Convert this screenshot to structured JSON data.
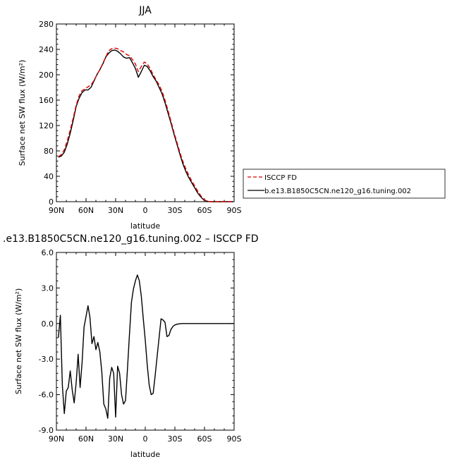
{
  "chart_data": [
    {
      "type": "line",
      "title": "JJA",
      "xlabel": "latitude",
      "ylabel": "Surface net SW flux (W/m²)",
      "xlim": [
        90,
        -90
      ],
      "ylim": [
        0,
        280
      ],
      "xticks": [
        {
          "value": 90,
          "label": "90N"
        },
        {
          "value": 60,
          "label": "60N"
        },
        {
          "value": 30,
          "label": "30N"
        },
        {
          "value": 0,
          "label": "0"
        },
        {
          "value": -30,
          "label": "30S"
        },
        {
          "value": -60,
          "label": "60S"
        },
        {
          "value": -90,
          "label": "90S"
        }
      ],
      "yticks": [
        {
          "value": 0,
          "label": "0"
        },
        {
          "value": 40,
          "label": "40"
        },
        {
          "value": 80,
          "label": "80"
        },
        {
          "value": 120,
          "label": "120"
        },
        {
          "value": 160,
          "label": "160"
        },
        {
          "value": 200,
          "label": "200"
        },
        {
          "value": 240,
          "label": "240"
        },
        {
          "value": 280,
          "label": "280"
        }
      ],
      "legend_position": "right",
      "series": [
        {
          "name": "ISCCP FD",
          "color": "#dd0000",
          "dash": "dashed",
          "x": [
            88,
            85,
            82,
            79,
            76,
            73,
            70,
            67,
            64,
            61,
            58,
            55,
            52,
            49,
            46,
            43,
            40,
            37,
            34,
            31,
            28,
            25,
            22,
            19,
            16,
            13,
            10,
            7,
            4,
            1,
            -2,
            -5,
            -8,
            -11,
            -14,
            -17,
            -20,
            -23,
            -26,
            -29,
            -32,
            -35,
            -38,
            -41,
            -44,
            -47,
            -50,
            -53,
            -56,
            -59,
            -62,
            -65,
            -68,
            -71,
            -74,
            -77,
            -80,
            -83,
            -86,
            -89
          ],
          "y": [
            71,
            74,
            82,
            96,
            113,
            132,
            152,
            167,
            175,
            178,
            181,
            184,
            191,
            200,
            208,
            218,
            228,
            238,
            241,
            242,
            241,
            238,
            236,
            232,
            230,
            224,
            217,
            205,
            213,
            220,
            217,
            210,
            200,
            192,
            184,
            174,
            160,
            144,
            127,
            110,
            94,
            78,
            64,
            52,
            42,
            33,
            25,
            17,
            10,
            4,
            1,
            0,
            0,
            0,
            0,
            0,
            0,
            0,
            0,
            0
          ]
        },
        {
          "name": "b.e13.B1850C5CN.ne120_g16.tuning.002",
          "color": "#000000",
          "dash": "solid",
          "x": [
            88,
            85,
            82,
            79,
            76,
            73,
            70,
            67,
            64,
            61,
            58,
            55,
            52,
            49,
            46,
            43,
            40,
            37,
            34,
            31,
            28,
            25,
            22,
            19,
            16,
            13,
            10,
            7,
            4,
            1,
            -2,
            -5,
            -8,
            -11,
            -14,
            -17,
            -20,
            -23,
            -26,
            -29,
            -32,
            -35,
            -38,
            -41,
            -44,
            -47,
            -50,
            -53,
            -56,
            -59,
            -62,
            -65,
            -68,
            -71,
            -74,
            -77,
            -80,
            -83,
            -86,
            -89
          ],
          "y": [
            70,
            72,
            78,
            91,
            108,
            128,
            150,
            163,
            172,
            176,
            176,
            180,
            190,
            200,
            208,
            217,
            228,
            234,
            238,
            239,
            237,
            233,
            228,
            226,
            227,
            219,
            210,
            196,
            205,
            215,
            213,
            206,
            197,
            190,
            180,
            170,
            156,
            140,
            124,
            107,
            91,
            75,
            60,
            48,
            38,
            30,
            22,
            14,
            8,
            3,
            1,
            0,
            0,
            0,
            0,
            0,
            0,
            0,
            0,
            0
          ]
        }
      ]
    },
    {
      "type": "line",
      "title": ".e13.B1850C5CN.ne120_g16.tuning.002 – ISCCP FD",
      "xlabel": "latitude",
      "ylabel": "Surface net SW flux (W/m²)",
      "xlim": [
        90,
        -90
      ],
      "ylim": [
        -9,
        6
      ],
      "xticks": [
        {
          "value": 90,
          "label": "90N"
        },
        {
          "value": 60,
          "label": "60N"
        },
        {
          "value": 30,
          "label": "30N"
        },
        {
          "value": 0,
          "label": "0"
        },
        {
          "value": -30,
          "label": "30S"
        },
        {
          "value": -60,
          "label": "60S"
        },
        {
          "value": -90,
          "label": "90S"
        }
      ],
      "yticks": [
        {
          "value": -9,
          "label": "-9.0"
        },
        {
          "value": -6,
          "label": "-6.0"
        },
        {
          "value": -3,
          "label": "-3.0"
        },
        {
          "value": 0,
          "label": "0.0"
        },
        {
          "value": 3,
          "label": "3.0"
        },
        {
          "value": 6,
          "label": "6.0"
        }
      ],
      "series": [
        {
          "color": "#000000",
          "dash": "solid",
          "x": [
            88,
            86,
            84,
            82,
            80,
            78,
            76,
            74,
            72,
            70,
            68,
            66,
            64,
            62,
            60,
            58,
            56,
            54,
            52,
            50,
            48,
            46,
            44,
            42,
            40,
            38,
            36,
            34,
            32,
            30,
            28,
            26,
            24,
            22,
            20,
            18,
            16,
            14,
            12,
            10,
            8,
            6,
            4,
            2,
            0,
            -2,
            -4,
            -6,
            -8,
            -10,
            -12,
            -14,
            -16,
            -18,
            -20,
            -22,
            -24,
            -26,
            -28,
            -30,
            -32,
            -34,
            -36,
            -38,
            -40,
            -42,
            -44,
            -46,
            -48,
            -50,
            -52,
            -54,
            -56,
            -58,
            -60,
            -62,
            -64,
            -66,
            -68,
            -70,
            -72,
            -74,
            -76,
            -78,
            -80,
            -82,
            -84,
            -86,
            -88,
            -90
          ],
          "y": [
            -1.2,
            0.7,
            -5.2,
            -7.6,
            -5.7,
            -5.4,
            -4.0,
            -5.6,
            -6.7,
            -5.0,
            -2.6,
            -5.4,
            -3.3,
            -0.3,
            0.6,
            1.5,
            0.5,
            -1.7,
            -1.1,
            -2.2,
            -1.6,
            -2.4,
            -4.1,
            -6.8,
            -7.2,
            -8.0,
            -4.6,
            -3.7,
            -4.2,
            -7.9,
            -3.6,
            -4.2,
            -6.0,
            -6.8,
            -6.5,
            -3.8,
            -0.9,
            1.8,
            2.9,
            3.6,
            4.1,
            3.6,
            2.3,
            0.4,
            -1.4,
            -3.5,
            -5.2,
            -6.0,
            -5.9,
            -4.4,
            -2.8,
            -1.2,
            0.4,
            0.3,
            0.1,
            -1.1,
            -1.0,
            -0.5,
            -0.25,
            -0.12,
            -0.06,
            -0.03,
            -0.01,
            0.0,
            0.0,
            0.0,
            0.0,
            0.0,
            0.0,
            0.0,
            0.0,
            0.0,
            0.0,
            0.0,
            0.0,
            0.0,
            0.0,
            0.0,
            0.0,
            0.0,
            0.0,
            0.0,
            0.0,
            0.0,
            0.0,
            0.0,
            0.0,
            0.0,
            0.0,
            0.0
          ]
        }
      ]
    }
  ]
}
